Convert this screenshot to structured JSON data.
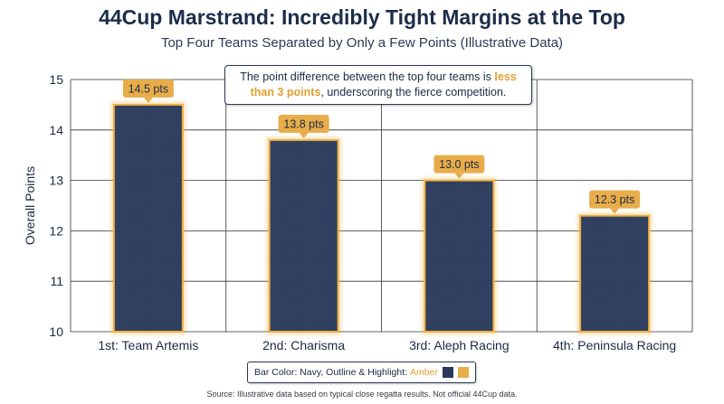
{
  "header": {
    "title": "44Cup Marstrand: Incredibly Tight Margins at the Top",
    "subtitle": "Top Four Teams Separated by Only a Few Points (Illustrative Data)"
  },
  "callout": {
    "text_before": "The point difference between the top four teams is ",
    "highlight": "less than 3 points",
    "text_after": ", underscoring the fierce competition."
  },
  "legend": {
    "label": "Bar Color: Navy, Outline & Highlight:",
    "highlight_word": "Amber"
  },
  "source": "Source: Illustrative data based on typical close regatta results. Not official 44Cup data.",
  "colors": {
    "bar_fill": "#2f4060",
    "bar_outline": "#f0b040",
    "label_fill": "#e8ad4a",
    "navy": "#2a3a5c",
    "amber": "#e8ad4a"
  },
  "chart_data": {
    "type": "bar",
    "categories": [
      "1st: Team Artemis",
      "2nd: Charisma",
      "3rd: Aleph Racing",
      "4th: Peninsula Racing"
    ],
    "values": [
      14.5,
      13.8,
      13.0,
      12.3
    ],
    "data_labels": [
      "14.5 pts",
      "13.8 pts",
      "13.0 pts",
      "12.3 pts"
    ],
    "ylabel": "Overall Points",
    "xlabel": "",
    "ylim": [
      10,
      15
    ],
    "yticks": [
      10,
      11,
      12,
      13,
      14,
      15
    ],
    "grid": true
  }
}
